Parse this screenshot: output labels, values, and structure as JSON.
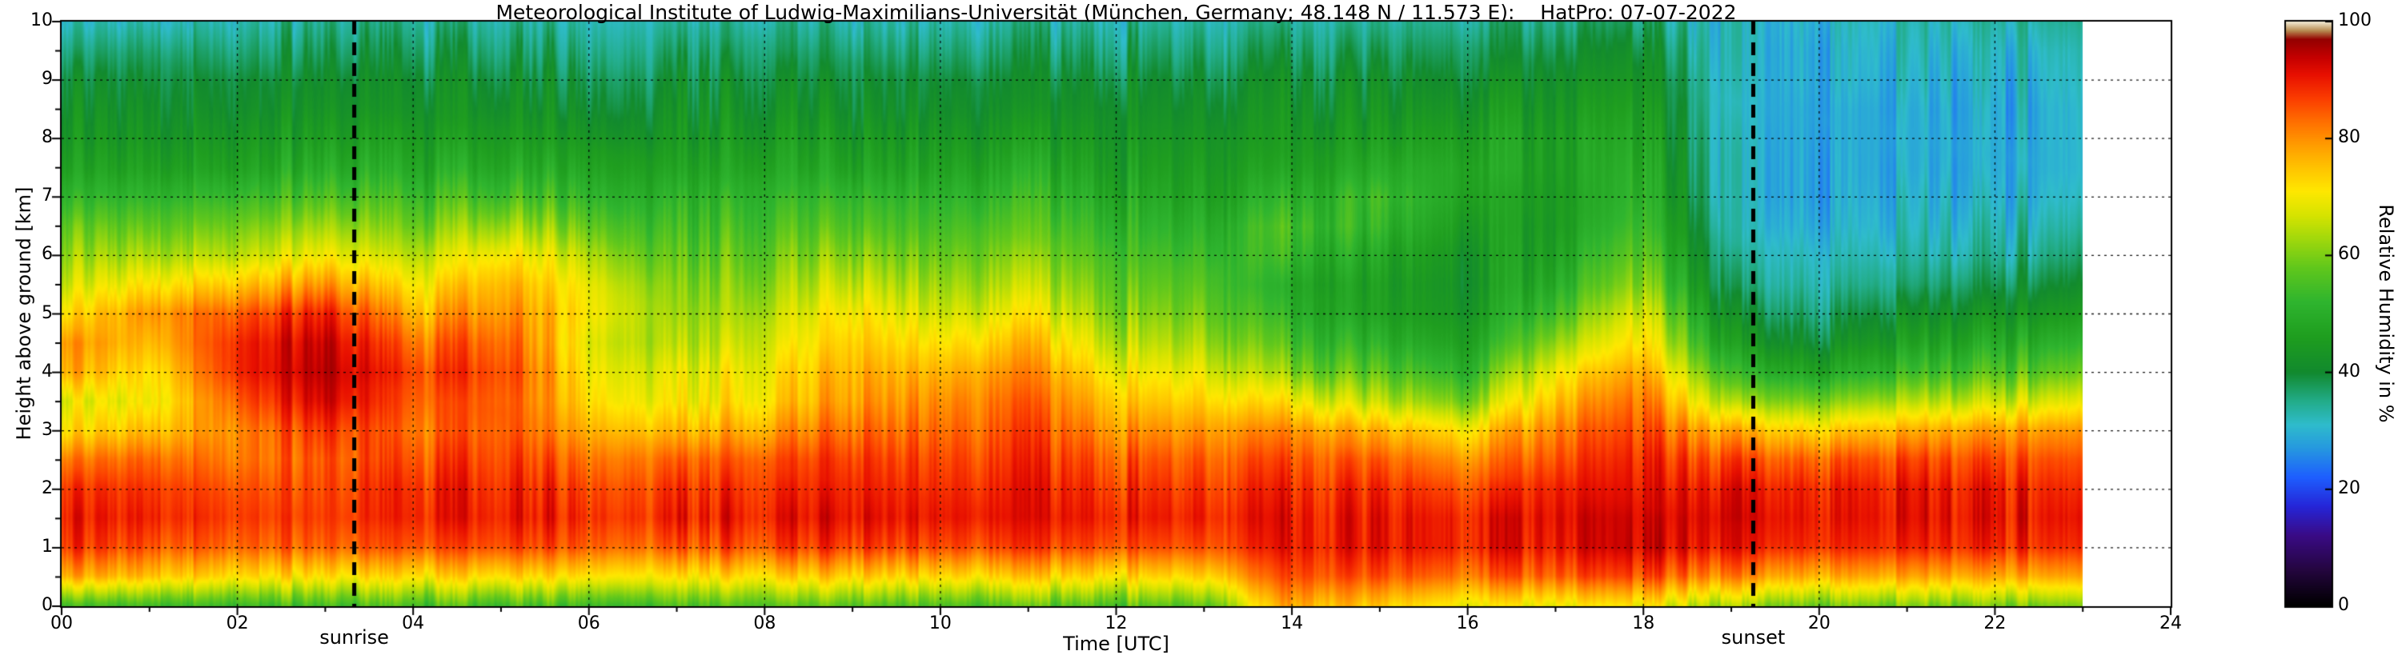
{
  "chart_data": {
    "type": "heatmap",
    "title": "Meteorological Institute of Ludwig-Maximilians-Universität (München, Germany; 48.148 N / 11.573 E):    HatPro: 07-07-2022",
    "xlabel": "Time [UTC]",
    "ylabel": "Height above ground [km]",
    "colorbar_label": "Relative Humidity in %",
    "xlim": [
      0,
      24
    ],
    "ylim": [
      0,
      10
    ],
    "clim": [
      0,
      100
    ],
    "grid": {
      "x_step_hours": 2,
      "y_step_km": 1,
      "style": "dashed"
    },
    "x_ticks": [
      "00",
      "02",
      "04",
      "06",
      "08",
      "10",
      "12",
      "14",
      "16",
      "18",
      "20",
      "22",
      "24"
    ],
    "y_ticks": [
      "0",
      "1",
      "2",
      "3",
      "4",
      "5",
      "6",
      "7",
      "8",
      "9",
      "10"
    ],
    "colorbar_ticks": [
      "0",
      "20",
      "40",
      "60",
      "80",
      "100"
    ],
    "annotations": [
      {
        "label": "sunrise",
        "hour": 3.33,
        "style": "dashed-vertical-line"
      },
      {
        "label": "sunset",
        "hour": 19.25,
        "style": "dashed-vertical-line"
      }
    ],
    "data_start_hour": 0,
    "data_end_hour": 23,
    "hours": [
      0,
      1,
      2,
      3,
      4,
      5,
      6,
      7,
      8,
      9,
      10,
      11,
      12,
      13,
      14,
      15,
      16,
      17,
      18,
      19,
      20,
      21,
      22,
      23
    ],
    "heights_km": [
      0,
      0.5,
      1,
      1.5,
      2,
      2.5,
      3,
      3.5,
      4,
      4.5,
      5,
      5.5,
      6,
      6.5,
      7,
      7.5,
      8,
      8.5,
      9,
      9.5,
      10
    ],
    "rh_percent_by_hour": [
      [
        55,
        78,
        88,
        90,
        88,
        82,
        72,
        68,
        78,
        80,
        72,
        66,
        62,
        58,
        52,
        47,
        44,
        42,
        40,
        36,
        32
      ],
      [
        55,
        76,
        86,
        90,
        88,
        84,
        76,
        70,
        72,
        76,
        80,
        72,
        64,
        58,
        52,
        47,
        44,
        42,
        40,
        37,
        33
      ],
      [
        55,
        74,
        85,
        88,
        86,
        83,
        82,
        86,
        90,
        90,
        86,
        76,
        66,
        60,
        54,
        48,
        45,
        42,
        40,
        37,
        34
      ],
      [
        55,
        72,
        84,
        87,
        86,
        85,
        88,
        93,
        95,
        94,
        90,
        80,
        70,
        63,
        56,
        50,
        46,
        43,
        41,
        38,
        35
      ],
      [
        55,
        72,
        85,
        89,
        88,
        85,
        82,
        84,
        86,
        82,
        76,
        70,
        64,
        58,
        53,
        48,
        45,
        42,
        40,
        37,
        34
      ],
      [
        56,
        74,
        87,
        91,
        90,
        88,
        86,
        86,
        88,
        86,
        82,
        78,
        72,
        64,
        56,
        50,
        46,
        43,
        41,
        38,
        35
      ],
      [
        56,
        73,
        86,
        90,
        88,
        84,
        78,
        74,
        72,
        70,
        72,
        70,
        66,
        60,
        54,
        49,
        45,
        42,
        40,
        37,
        34
      ],
      [
        56,
        72,
        85,
        90,
        88,
        84,
        76,
        70,
        68,
        64,
        62,
        60,
        57,
        54,
        51,
        47,
        44,
        42,
        40,
        37,
        34
      ],
      [
        57,
        73,
        86,
        90,
        88,
        85,
        78,
        72,
        70,
        67,
        64,
        61,
        58,
        55,
        52,
        48,
        45,
        42,
        40,
        37,
        34
      ],
      [
        58,
        75,
        88,
        92,
        90,
        88,
        84,
        80,
        78,
        75,
        72,
        67,
        62,
        57,
        53,
        48,
        45,
        42,
        40,
        37,
        34
      ],
      [
        57,
        74,
        87,
        91,
        89,
        87,
        84,
        81,
        77,
        72,
        67,
        63,
        59,
        55,
        52,
        48,
        45,
        42,
        40,
        37,
        34
      ],
      [
        57,
        74,
        87,
        91,
        90,
        88,
        86,
        84,
        81,
        76,
        70,
        65,
        61,
        57,
        53,
        49,
        45,
        42,
        40,
        37,
        34
      ],
      [
        57,
        73,
        86,
        90,
        88,
        85,
        80,
        75,
        70,
        65,
        61,
        58,
        55,
        52,
        49,
        46,
        44,
        42,
        40,
        37,
        34
      ],
      [
        58,
        74,
        86,
        90,
        88,
        85,
        80,
        74,
        69,
        64,
        60,
        57,
        54,
        51,
        48,
        46,
        44,
        42,
        40,
        37,
        34
      ],
      [
        78,
        86,
        90,
        90,
        88,
        85,
        80,
        70,
        60,
        54,
        50,
        48,
        52,
        54,
        50,
        46,
        44,
        42,
        40,
        37,
        34
      ],
      [
        74,
        85,
        90,
        90,
        88,
        84,
        76,
        64,
        56,
        50,
        46,
        45,
        47,
        51,
        53,
        49,
        45,
        42,
        40,
        37,
        34
      ],
      [
        70,
        83,
        90,
        90,
        86,
        80,
        72,
        60,
        52,
        47,
        44,
        43,
        44,
        46,
        48,
        49,
        47,
        44,
        41,
        38,
        35
      ],
      [
        70,
        85,
        91,
        92,
        90,
        86,
        82,
        76,
        70,
        62,
        55,
        50,
        47,
        45,
        45,
        46,
        46,
        44,
        42,
        39,
        36
      ],
      [
        70,
        85,
        92,
        92,
        90,
        88,
        85,
        82,
        78,
        72,
        67,
        61,
        57,
        54,
        51,
        49,
        47,
        45,
        43,
        40,
        36
      ],
      [
        62,
        80,
        90,
        92,
        90,
        85,
        76,
        62,
        52,
        44,
        39,
        35,
        33,
        31,
        30,
        30,
        30,
        30,
        30,
        30,
        30
      ],
      [
        60,
        78,
        89,
        91,
        90,
        85,
        74,
        60,
        48,
        41,
        37,
        34,
        32,
        30,
        29,
        29,
        29,
        29,
        30,
        30,
        31
      ],
      [
        60,
        78,
        89,
        91,
        90,
        86,
        77,
        64,
        53,
        46,
        41,
        36,
        33,
        31,
        30,
        29,
        29,
        29,
        30,
        31,
        32
      ],
      [
        60,
        78,
        89,
        91,
        90,
        86,
        79,
        66,
        56,
        49,
        43,
        38,
        34,
        32,
        30,
        29,
        29,
        29,
        30,
        31,
        33
      ],
      [
        60,
        78,
        88,
        90,
        88,
        85,
        79,
        68,
        58,
        51,
        45,
        40,
        36,
        33,
        31,
        30,
        30,
        30,
        31,
        32,
        34
      ]
    ],
    "colormap_stops": [
      [
        0,
        "#000000"
      ],
      [
        6,
        "#24063e"
      ],
      [
        12,
        "#3a0b86"
      ],
      [
        17,
        "#2626d8"
      ],
      [
        22,
        "#1e5fff"
      ],
      [
        27,
        "#2699e0"
      ],
      [
        31,
        "#2fbccc"
      ],
      [
        35,
        "#23ad8a"
      ],
      [
        40,
        "#128a2e"
      ],
      [
        46,
        "#1f9e1f"
      ],
      [
        52,
        "#2fb52f"
      ],
      [
        58,
        "#62c81c"
      ],
      [
        63,
        "#a4d90c"
      ],
      [
        67,
        "#d8e400"
      ],
      [
        71,
        "#ffe800"
      ],
      [
        75,
        "#ffc400"
      ],
      [
        79,
        "#ff9c00"
      ],
      [
        83,
        "#ff6e00"
      ],
      [
        87,
        "#fb3c00"
      ],
      [
        91,
        "#e81000"
      ],
      [
        94,
        "#c40000"
      ],
      [
        97,
        "#940000"
      ],
      [
        98.5,
        "#b78a50"
      ],
      [
        100,
        "#f2ead2"
      ]
    ]
  }
}
